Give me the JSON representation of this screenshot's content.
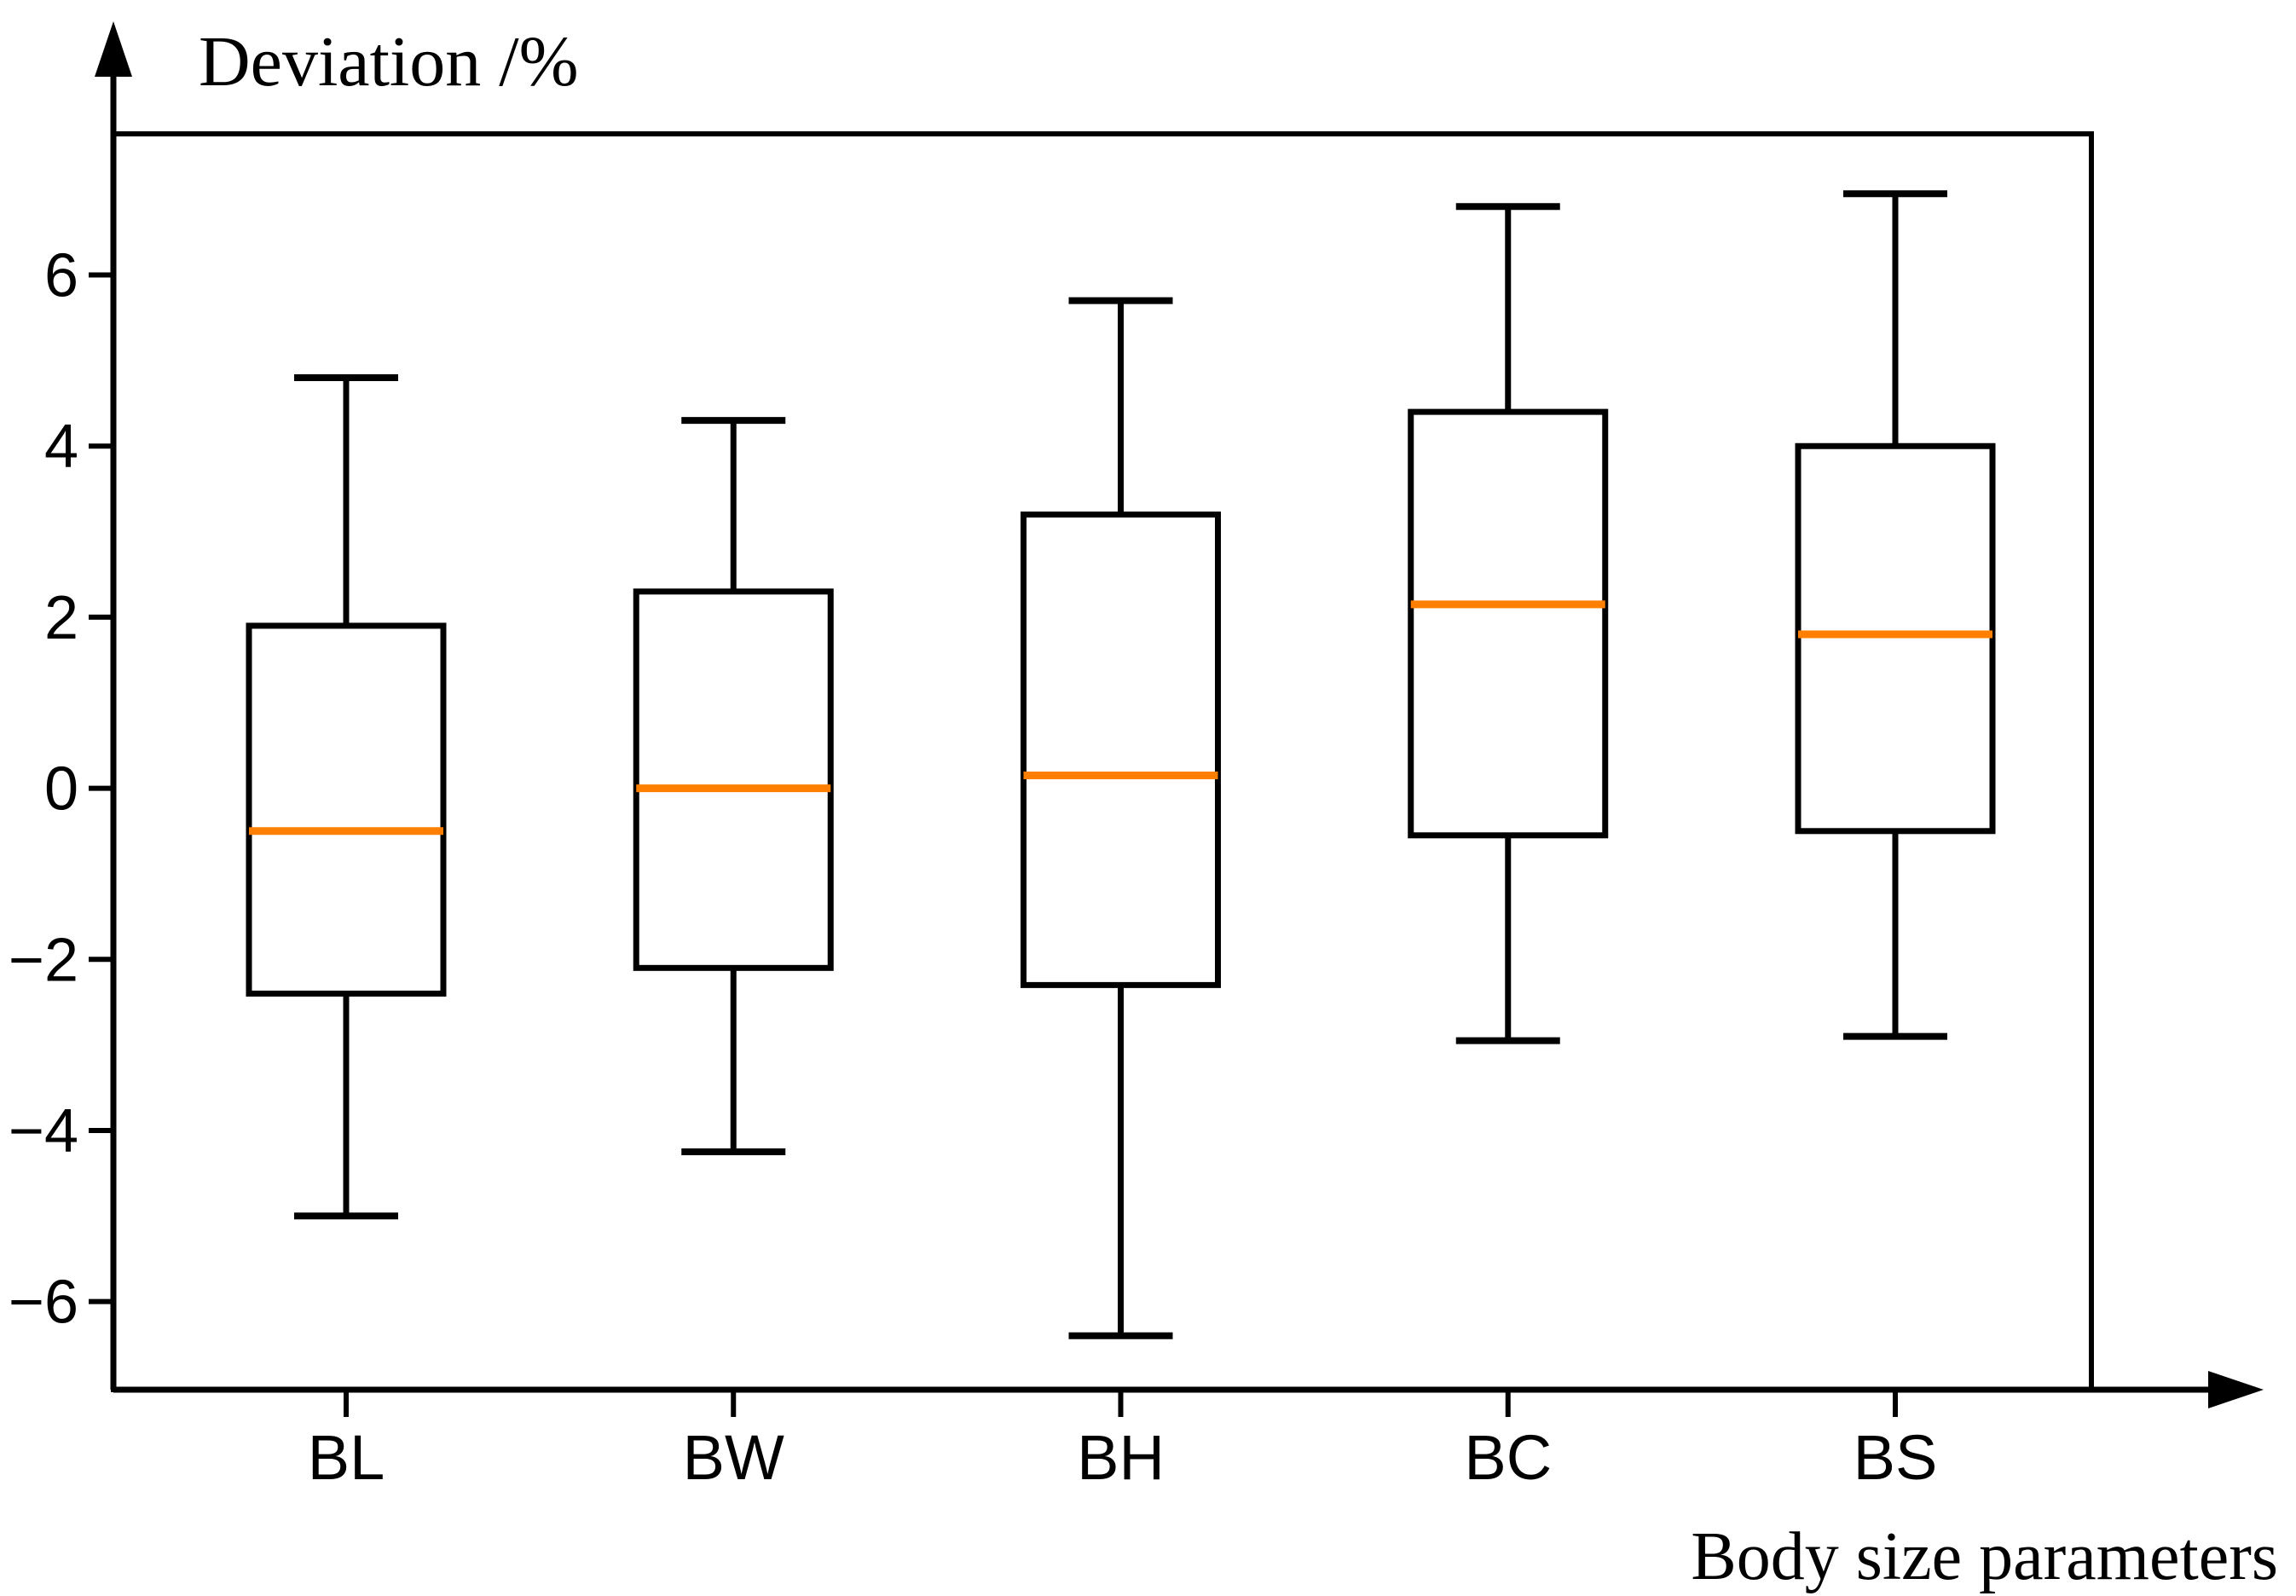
{
  "figure": {
    "background": "#ffffff",
    "axis_color": "#000000"
  },
  "chart_data": {
    "type": "boxplot",
    "title": "",
    "ylabel": "Deviation /%",
    "xlabel": "Body size parameters",
    "categories": [
      "BL",
      "BW",
      "BH",
      "BC",
      "BS"
    ],
    "series": [
      {
        "name": "BL",
        "whisker_low": -5.0,
        "q1": -2.4,
        "median": -0.5,
        "q3": 1.9,
        "whisker_high": 4.8
      },
      {
        "name": "BW",
        "whisker_low": -4.25,
        "q1": -2.1,
        "median": 0.0,
        "q3": 2.3,
        "whisker_high": 4.3
      },
      {
        "name": "BH",
        "whisker_low": -6.4,
        "q1": -2.3,
        "median": 0.15,
        "q3": 3.2,
        "whisker_high": 5.7
      },
      {
        "name": "BC",
        "whisker_low": -2.95,
        "q1": -0.55,
        "median": 2.15,
        "q3": 4.4,
        "whisker_high": 6.8
      },
      {
        "name": "BS",
        "whisker_low": -2.9,
        "q1": -0.5,
        "median": 1.8,
        "q3": 4.0,
        "whisker_high": 6.95
      }
    ],
    "yticks": [
      6,
      4,
      2,
      0,
      -2,
      -4,
      -6
    ],
    "ytick_labels": [
      "6",
      "4",
      "2",
      "0",
      "−2",
      "−4",
      "−6"
    ],
    "ylim": [
      -7.03,
      7.65
    ],
    "grid": false,
    "legend": "none",
    "box_color": "#000000",
    "box_fill": "#ffffff",
    "median_color": "#ff8000"
  }
}
